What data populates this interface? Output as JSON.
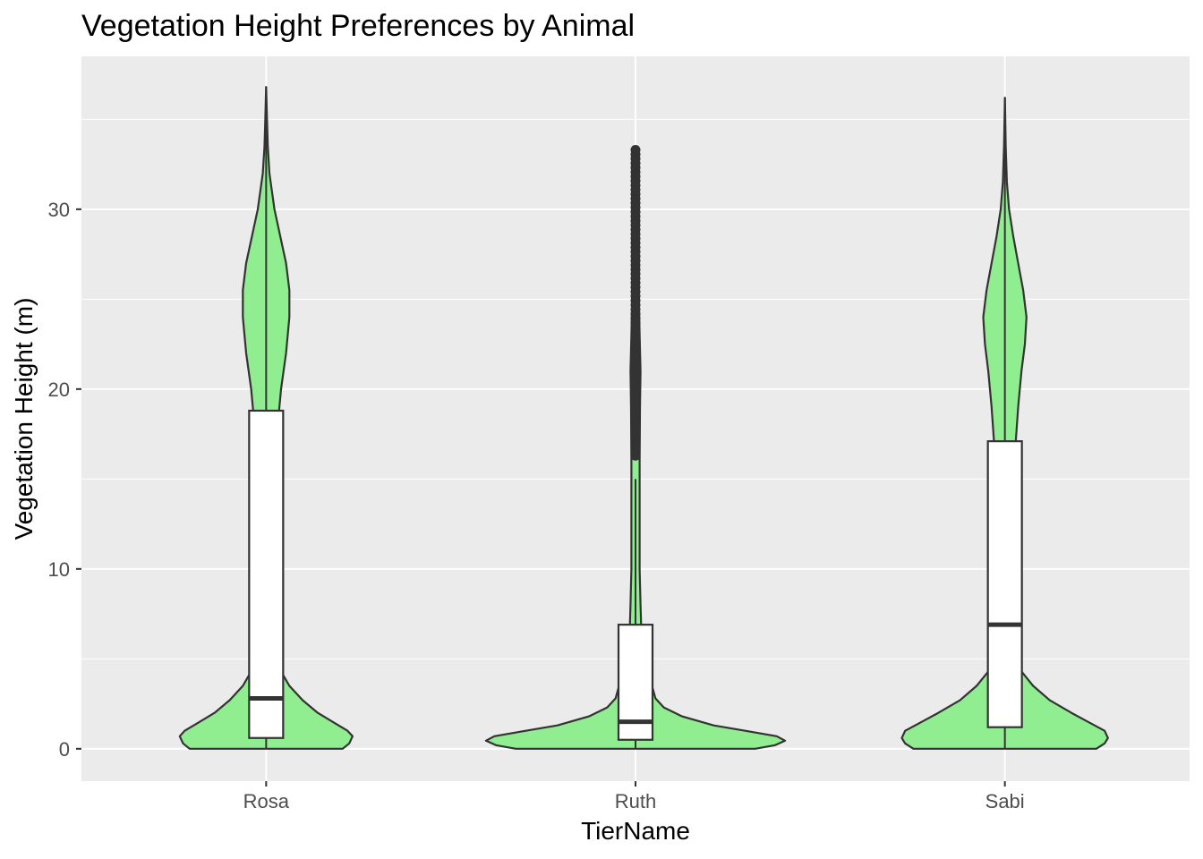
{
  "chart_data": {
    "type": "violin",
    "title": "Vegetation Height Preferences by Animal",
    "xlabel": "TierName",
    "ylabel": "Vegetation Height (m)",
    "categories": [
      "Rosa",
      "Ruth",
      "Sabi"
    ],
    "ylim": [
      -1.8,
      38.5
    ],
    "yticks": [
      0,
      10,
      20,
      30
    ],
    "ytick_labels": [
      "0",
      "10",
      "20",
      "30"
    ],
    "grid": true,
    "legend": "none",
    "colors": {
      "panel": "#EBEBEB",
      "grid": "#FFFFFF",
      "violin_fill": "#90EE90",
      "outline": "#333333",
      "box_fill": "#FFFFFF"
    },
    "series": [
      {
        "category": "Rosa",
        "box": {
          "q1": 0.6,
          "median": 2.8,
          "q3": 18.8,
          "whisker_low": 0,
          "whisker_high": 36.8
        },
        "outliers": [],
        "violin": {
          "y": [
            0,
            0.3,
            0.7,
            1.0,
            1.5,
            2.0,
            2.7,
            3.5,
            4.3,
            5.0,
            6.0,
            8.0,
            12.0,
            15.0,
            18.0,
            20.0,
            22.0,
            24.0,
            25.5,
            27.0,
            28.5,
            30.0,
            32.0,
            33.5,
            35.0,
            36.8
          ],
          "density": [
            0.46,
            0.5,
            0.52,
            0.49,
            0.4,
            0.31,
            0.22,
            0.14,
            0.09,
            0.065,
            0.05,
            0.04,
            0.04,
            0.05,
            0.07,
            0.09,
            0.12,
            0.14,
            0.14,
            0.12,
            0.085,
            0.05,
            0.02,
            0.01,
            0.005,
            0.0
          ]
        }
      },
      {
        "category": "Ruth",
        "box": {
          "q1": 0.5,
          "median": 1.5,
          "q3": 6.9,
          "whisker_low": 0,
          "whisker_high": 15.0
        },
        "outliers_range": [
          16.3,
          33.3
        ],
        "violin": {
          "y": [
            0,
            0.2,
            0.45,
            0.7,
            1.0,
            1.3,
            1.8,
            2.3,
            2.8,
            3.3,
            3.8,
            4.5,
            5.3,
            6.5,
            8.0,
            10.0,
            13.0,
            16.0,
            19.0,
            21.0,
            23.0,
            25.0,
            27.0,
            29.0,
            31.0,
            33.3
          ],
          "density": [
            0.72,
            0.84,
            0.9,
            0.85,
            0.66,
            0.47,
            0.28,
            0.17,
            0.12,
            0.105,
            0.09,
            0.07,
            0.05,
            0.035,
            0.03,
            0.025,
            0.025,
            0.025,
            0.027,
            0.03,
            0.025,
            0.02,
            0.015,
            0.01,
            0.005,
            0.0
          ]
        }
      },
      {
        "category": "Sabi",
        "box": {
          "q1": 1.2,
          "median": 6.9,
          "q3": 17.1,
          "whisker_low": 0,
          "whisker_high": 36.2
        },
        "outliers": [],
        "violin": {
          "y": [
            0,
            0.3,
            0.6,
            1.0,
            1.5,
            2.0,
            2.7,
            3.5,
            4.3,
            5.0,
            6.0,
            8.0,
            12.0,
            15.0,
            17.0,
            19.0,
            21.0,
            22.5,
            24.0,
            25.5,
            27.0,
            28.5,
            30.0,
            31.5,
            33.5,
            36.2
          ],
          "density": [
            0.55,
            0.6,
            0.62,
            0.6,
            0.5,
            0.4,
            0.27,
            0.17,
            0.1,
            0.075,
            0.06,
            0.05,
            0.045,
            0.05,
            0.065,
            0.08,
            0.1,
            0.12,
            0.13,
            0.11,
            0.08,
            0.05,
            0.025,
            0.012,
            0.005,
            0.0
          ]
        }
      }
    ]
  }
}
